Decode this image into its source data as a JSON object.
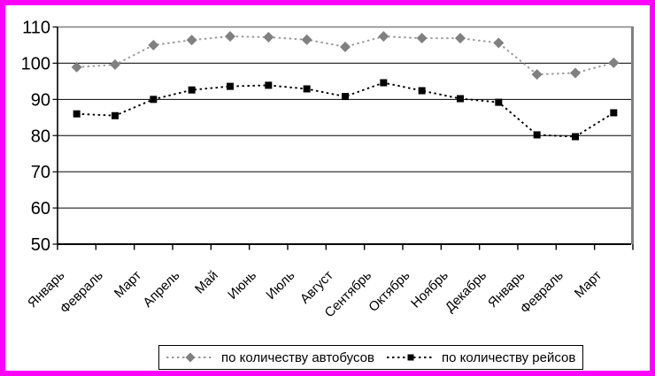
{
  "frame": {
    "border_color": "#FF00FF",
    "background": "#FFFFFF"
  },
  "chart_data": {
    "type": "line",
    "title": "",
    "xlabel": "",
    "ylabel": "",
    "ylim": [
      50,
      110
    ],
    "yticks": [
      110,
      100,
      90,
      80,
      70,
      60,
      50
    ],
    "grid": "horizontal",
    "legend_position": "bottom",
    "line_style": "dotted",
    "categories": [
      "Январь",
      "Февраль",
      "Март",
      "Апрель",
      "Май",
      "Июнь",
      "Июль",
      "Август",
      "Сентябрь",
      "Октябрь",
      "Ноябрь",
      "Декабрь",
      "Январь",
      "Февраль",
      "Март"
    ],
    "series": [
      {
        "name": "по количеству автобусов",
        "marker": "diamond",
        "marker_color": "#808080",
        "line_color": "#999999",
        "values": [
          98.9,
          99.6,
          105.0,
          106.4,
          107.4,
          107.2,
          106.5,
          104.5,
          107.4,
          106.9,
          106.9,
          105.6,
          96.9,
          97.3,
          100.1
        ]
      },
      {
        "name": "по количеству рейсов",
        "marker": "square",
        "marker_color": "#000000",
        "line_color": "#000000",
        "values": [
          86.0,
          85.5,
          90.0,
          92.6,
          93.6,
          93.9,
          92.9,
          90.8,
          94.6,
          92.4,
          90.2,
          89.2,
          80.2,
          79.7,
          86.3
        ]
      }
    ],
    "colors": {
      "grid": "#000000",
      "axis": "#000000",
      "plot_border": "#808080"
    }
  }
}
